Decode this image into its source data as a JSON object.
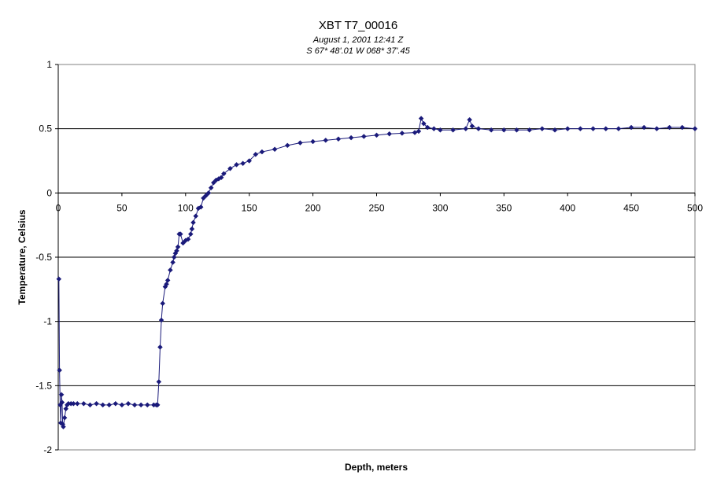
{
  "chart_data": {
    "type": "scatter",
    "title": "XBT T7_00016",
    "subtitle_lines": [
      "August 1, 2001  12:41 Z",
      "S 67* 48'.01  W 068* 37'.45"
    ],
    "xlabel": "Depth, meters",
    "ylabel": "Temperature, Celsius",
    "xlim": [
      0,
      500
    ],
    "ylim": [
      -2,
      1
    ],
    "x_ticks": [
      "0",
      "50",
      "100",
      "150",
      "200",
      "250",
      "300",
      "350",
      "400",
      "450",
      "500"
    ],
    "y_ticks": [
      "1",
      "0.5",
      "0",
      "-0.5",
      "-1",
      "-1.5",
      "-2"
    ],
    "horizontal_gridlines": true,
    "x_axis_at_y": 0,
    "marker": "diamond",
    "line_style": "solid",
    "series_color": "#1a1a7a",
    "series": [
      {
        "x": [
          0.5,
          1,
          1.5,
          2,
          2.5,
          3,
          3.5,
          4,
          5,
          6,
          7,
          8,
          10,
          12,
          15,
          20,
          25,
          30,
          35,
          40,
          45,
          50,
          55,
          60,
          65,
          70,
          75,
          77,
          78,
          79,
          80,
          81,
          82,
          84,
          85,
          86,
          88,
          90,
          91,
          92,
          93,
          94,
          95,
          96,
          98,
          100,
          102,
          104,
          105,
          106,
          108,
          110,
          112,
          114,
          116,
          118,
          120,
          122,
          124,
          126,
          128,
          130,
          135,
          140,
          145,
          150,
          155,
          160,
          170,
          180,
          190,
          200,
          210,
          220,
          230,
          240,
          250,
          260,
          270,
          280,
          283,
          285,
          287,
          290,
          295,
          300,
          310,
          320,
          323,
          325,
          330,
          340,
          350,
          360,
          370,
          380,
          390,
          400,
          410,
          420,
          430,
          440,
          450,
          460,
          470,
          480,
          490,
          500
        ],
        "y": [
          -0.67,
          -1.38,
          -1.65,
          -1.79,
          -1.57,
          -1.63,
          -1.8,
          -1.82,
          -1.75,
          -1.68,
          -1.65,
          -1.64,
          -1.64,
          -1.64,
          -1.64,
          -1.64,
          -1.65,
          -1.64,
          -1.65,
          -1.65,
          -1.64,
          -1.65,
          -1.64,
          -1.65,
          -1.65,
          -1.65,
          -1.65,
          -1.65,
          -1.65,
          -1.47,
          -1.2,
          -0.99,
          -0.86,
          -0.73,
          -0.71,
          -0.68,
          -0.6,
          -0.54,
          -0.5,
          -0.47,
          -0.45,
          -0.42,
          -0.32,
          -0.32,
          -0.39,
          -0.37,
          -0.36,
          -0.32,
          -0.28,
          -0.23,
          -0.18,
          -0.12,
          -0.11,
          -0.04,
          -0.02,
          0.0,
          0.04,
          0.08,
          0.1,
          0.11,
          0.12,
          0.15,
          0.19,
          0.22,
          0.23,
          0.25,
          0.3,
          0.32,
          0.34,
          0.37,
          0.39,
          0.4,
          0.41,
          0.42,
          0.43,
          0.44,
          0.45,
          0.46,
          0.465,
          0.47,
          0.48,
          0.58,
          0.54,
          0.51,
          0.5,
          0.49,
          0.49,
          0.5,
          0.57,
          0.52,
          0.5,
          0.49,
          0.49,
          0.49,
          0.49,
          0.5,
          0.49,
          0.5,
          0.5,
          0.5,
          0.5,
          0.5,
          0.51,
          0.51,
          0.5,
          0.51,
          0.51,
          0.5
        ]
      }
    ]
  }
}
